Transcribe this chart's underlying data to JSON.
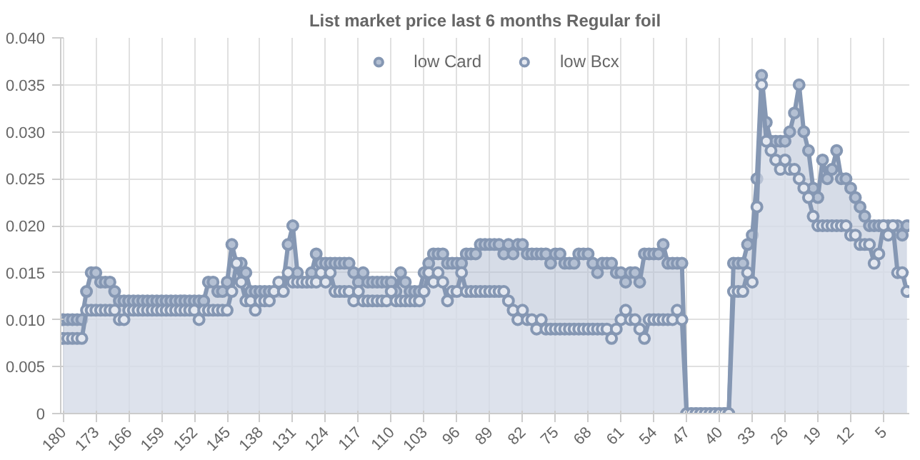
{
  "chart_data": {
    "type": "area",
    "title": "List market price last 6 months Regular foil",
    "categories": [
      "180",
      null,
      null,
      null,
      null,
      null,
      null,
      "173",
      null,
      null,
      null,
      null,
      null,
      null,
      "166",
      null,
      null,
      null,
      null,
      null,
      null,
      "159",
      null,
      null,
      null,
      null,
      null,
      null,
      "152",
      null,
      null,
      null,
      null,
      null,
      null,
      "145",
      null,
      null,
      null,
      null,
      null,
      null,
      "138",
      null,
      null,
      null,
      null,
      null,
      null,
      "131",
      null,
      null,
      null,
      null,
      null,
      null,
      "124",
      null,
      null,
      null,
      null,
      null,
      null,
      "117",
      null,
      null,
      null,
      null,
      null,
      null,
      "110",
      null,
      null,
      null,
      null,
      null,
      null,
      "103",
      null,
      null,
      null,
      null,
      null,
      null,
      "96",
      null,
      null,
      null,
      null,
      null,
      null,
      "89",
      null,
      null,
      null,
      null,
      null,
      null,
      "82",
      null,
      null,
      null,
      null,
      null,
      null,
      "75",
      null,
      null,
      null,
      null,
      null,
      null,
      "68",
      null,
      null,
      null,
      null,
      null,
      null,
      "61",
      null,
      null,
      null,
      null,
      null,
      null,
      "54",
      null,
      null,
      null,
      null,
      null,
      null,
      "47",
      null,
      null,
      null,
      null,
      null,
      null,
      "40",
      null,
      null,
      null,
      null,
      null,
      null,
      "33",
      null,
      null,
      null,
      null,
      null,
      null,
      "26",
      null,
      null,
      null,
      null,
      null,
      null,
      "19",
      null,
      null,
      null,
      null,
      null,
      null,
      "12",
      null,
      null,
      null,
      null,
      null,
      null,
      "5",
      null,
      null,
      null,
      null,
      null
    ],
    "series": [
      {
        "name": "low Card",
        "color": "#b4c0d3",
        "values": [
          0.01,
          0.01,
          0.01,
          0.01,
          0.01,
          0.013,
          0.015,
          0.015,
          0.014,
          0.014,
          0.014,
          0.013,
          0.012,
          0.012,
          0.012,
          0.012,
          0.012,
          0.012,
          0.012,
          0.012,
          0.012,
          0.012,
          0.012,
          0.012,
          0.012,
          0.012,
          0.012,
          0.012,
          0.012,
          0.012,
          0.012,
          0.014,
          0.014,
          0.013,
          0.013,
          0.014,
          0.018,
          0.016,
          0.016,
          0.015,
          0.013,
          0.013,
          0.013,
          0.013,
          0.013,
          0.013,
          0.013,
          0.014,
          0.018,
          0.02,
          0.015,
          0.014,
          0.014,
          0.015,
          0.017,
          0.016,
          0.016,
          0.016,
          0.016,
          0.016,
          0.016,
          0.016,
          0.015,
          0.014,
          0.015,
          0.014,
          0.014,
          0.014,
          0.014,
          0.014,
          0.014,
          0.013,
          0.015,
          0.014,
          0.013,
          0.013,
          0.013,
          0.015,
          0.016,
          0.017,
          0.017,
          0.017,
          0.016,
          0.016,
          0.016,
          0.016,
          0.017,
          0.017,
          0.017,
          0.018,
          0.018,
          0.018,
          0.018,
          0.018,
          0.017,
          0.018,
          0.017,
          0.018,
          0.018,
          0.017,
          0.017,
          0.017,
          0.017,
          0.017,
          0.016,
          0.017,
          0.017,
          0.016,
          0.016,
          0.016,
          0.017,
          0.017,
          0.017,
          0.016,
          0.015,
          0.016,
          0.016,
          0.016,
          0.015,
          0.015,
          0.014,
          0.015,
          0.015,
          0.014,
          0.017,
          0.017,
          0.017,
          0.017,
          0.018,
          0.016,
          0.016,
          0.016,
          0.016,
          0,
          0,
          0,
          0,
          0,
          0,
          0,
          0,
          0,
          0,
          0.016,
          0.016,
          0.016,
          0.018,
          0.019,
          0.025,
          0.036,
          0.031,
          0.029,
          0.029,
          0.029,
          0.029,
          0.03,
          0.032,
          0.035,
          0.03,
          0.028,
          0.024,
          0.023,
          0.027,
          0.025,
          0.026,
          0.028,
          0.025,
          0.025,
          0.024,
          0.023,
          0.022,
          0.021,
          0.02,
          0.02,
          0.02,
          0.02,
          0.02,
          0.02,
          0.02,
          0.019,
          0.02
        ]
      },
      {
        "name": "low Bcx",
        "color": "#e4e8f0",
        "values": [
          0.008,
          0.008,
          0.008,
          0.008,
          0.008,
          0.011,
          0.011,
          0.011,
          0.011,
          0.011,
          0.011,
          0.011,
          0.01,
          0.01,
          0.011,
          0.011,
          0.011,
          0.011,
          0.011,
          0.011,
          0.011,
          0.011,
          0.011,
          0.011,
          0.011,
          0.011,
          0.011,
          0.011,
          0.011,
          0.01,
          0.011,
          0.011,
          0.011,
          0.011,
          0.011,
          0.011,
          0.013,
          0.016,
          0.014,
          0.012,
          0.012,
          0.011,
          0.012,
          0.012,
          0.012,
          0.013,
          0.014,
          0.013,
          0.015,
          0.014,
          0.014,
          0.014,
          0.014,
          0.014,
          0.014,
          0.015,
          0.014,
          0.015,
          0.013,
          0.013,
          0.013,
          0.013,
          0.012,
          0.013,
          0.012,
          0.012,
          0.012,
          0.012,
          0.012,
          0.012,
          0.013,
          0.012,
          0.012,
          0.012,
          0.012,
          0.012,
          0.012,
          0.013,
          0.015,
          0.014,
          0.015,
          0.014,
          0.012,
          0.013,
          0.013,
          0.015,
          0.013,
          0.013,
          0.013,
          0.013,
          0.013,
          0.013,
          0.013,
          0.013,
          0.013,
          0.012,
          0.011,
          0.01,
          0.011,
          0.01,
          0.01,
          0.009,
          0.01,
          0.009,
          0.009,
          0.009,
          0.009,
          0.009,
          0.009,
          0.009,
          0.009,
          0.009,
          0.009,
          0.009,
          0.009,
          0.009,
          0.009,
          0.008,
          0.009,
          0.01,
          0.011,
          0.01,
          0.01,
          0.009,
          0.008,
          0.01,
          0.01,
          0.01,
          0.01,
          0.01,
          0.01,
          0.011,
          0.01,
          0,
          0,
          0,
          0,
          0,
          0,
          0,
          0,
          0,
          0,
          0.013,
          0.013,
          0.013,
          0.015,
          0.014,
          0.022,
          0.035,
          0.029,
          0.028,
          0.027,
          0.026,
          0.027,
          0.026,
          0.026,
          0.025,
          0.024,
          0.023,
          0.021,
          0.02,
          0.02,
          0.02,
          0.02,
          0.02,
          0.02,
          0.02,
          0.019,
          0.019,
          0.018,
          0.018,
          0.018,
          0.016,
          0.017,
          0.02,
          0.019,
          0.02,
          0.015,
          0.015,
          0.013
        ]
      }
    ],
    "ylim": [
      0,
      0.04
    ],
    "yticks": [
      0,
      {
        "value": 0.005,
        "label": "0.005"
      },
      {
        "value": 0.01,
        "label": "0.010"
      },
      {
        "value": 0.015,
        "label": "0.015"
      },
      {
        "value": 0.02,
        "label": "0.020"
      },
      {
        "value": 0.025,
        "label": "0.025"
      },
      {
        "value": 0.03,
        "label": "0.030"
      },
      {
        "value": 0.035,
        "label": "0.035"
      },
      {
        "value": 0.04,
        "label": "0.040"
      }
    ],
    "grid": true,
    "legend": "top",
    "marker": "circle",
    "line_style": "solid"
  }
}
